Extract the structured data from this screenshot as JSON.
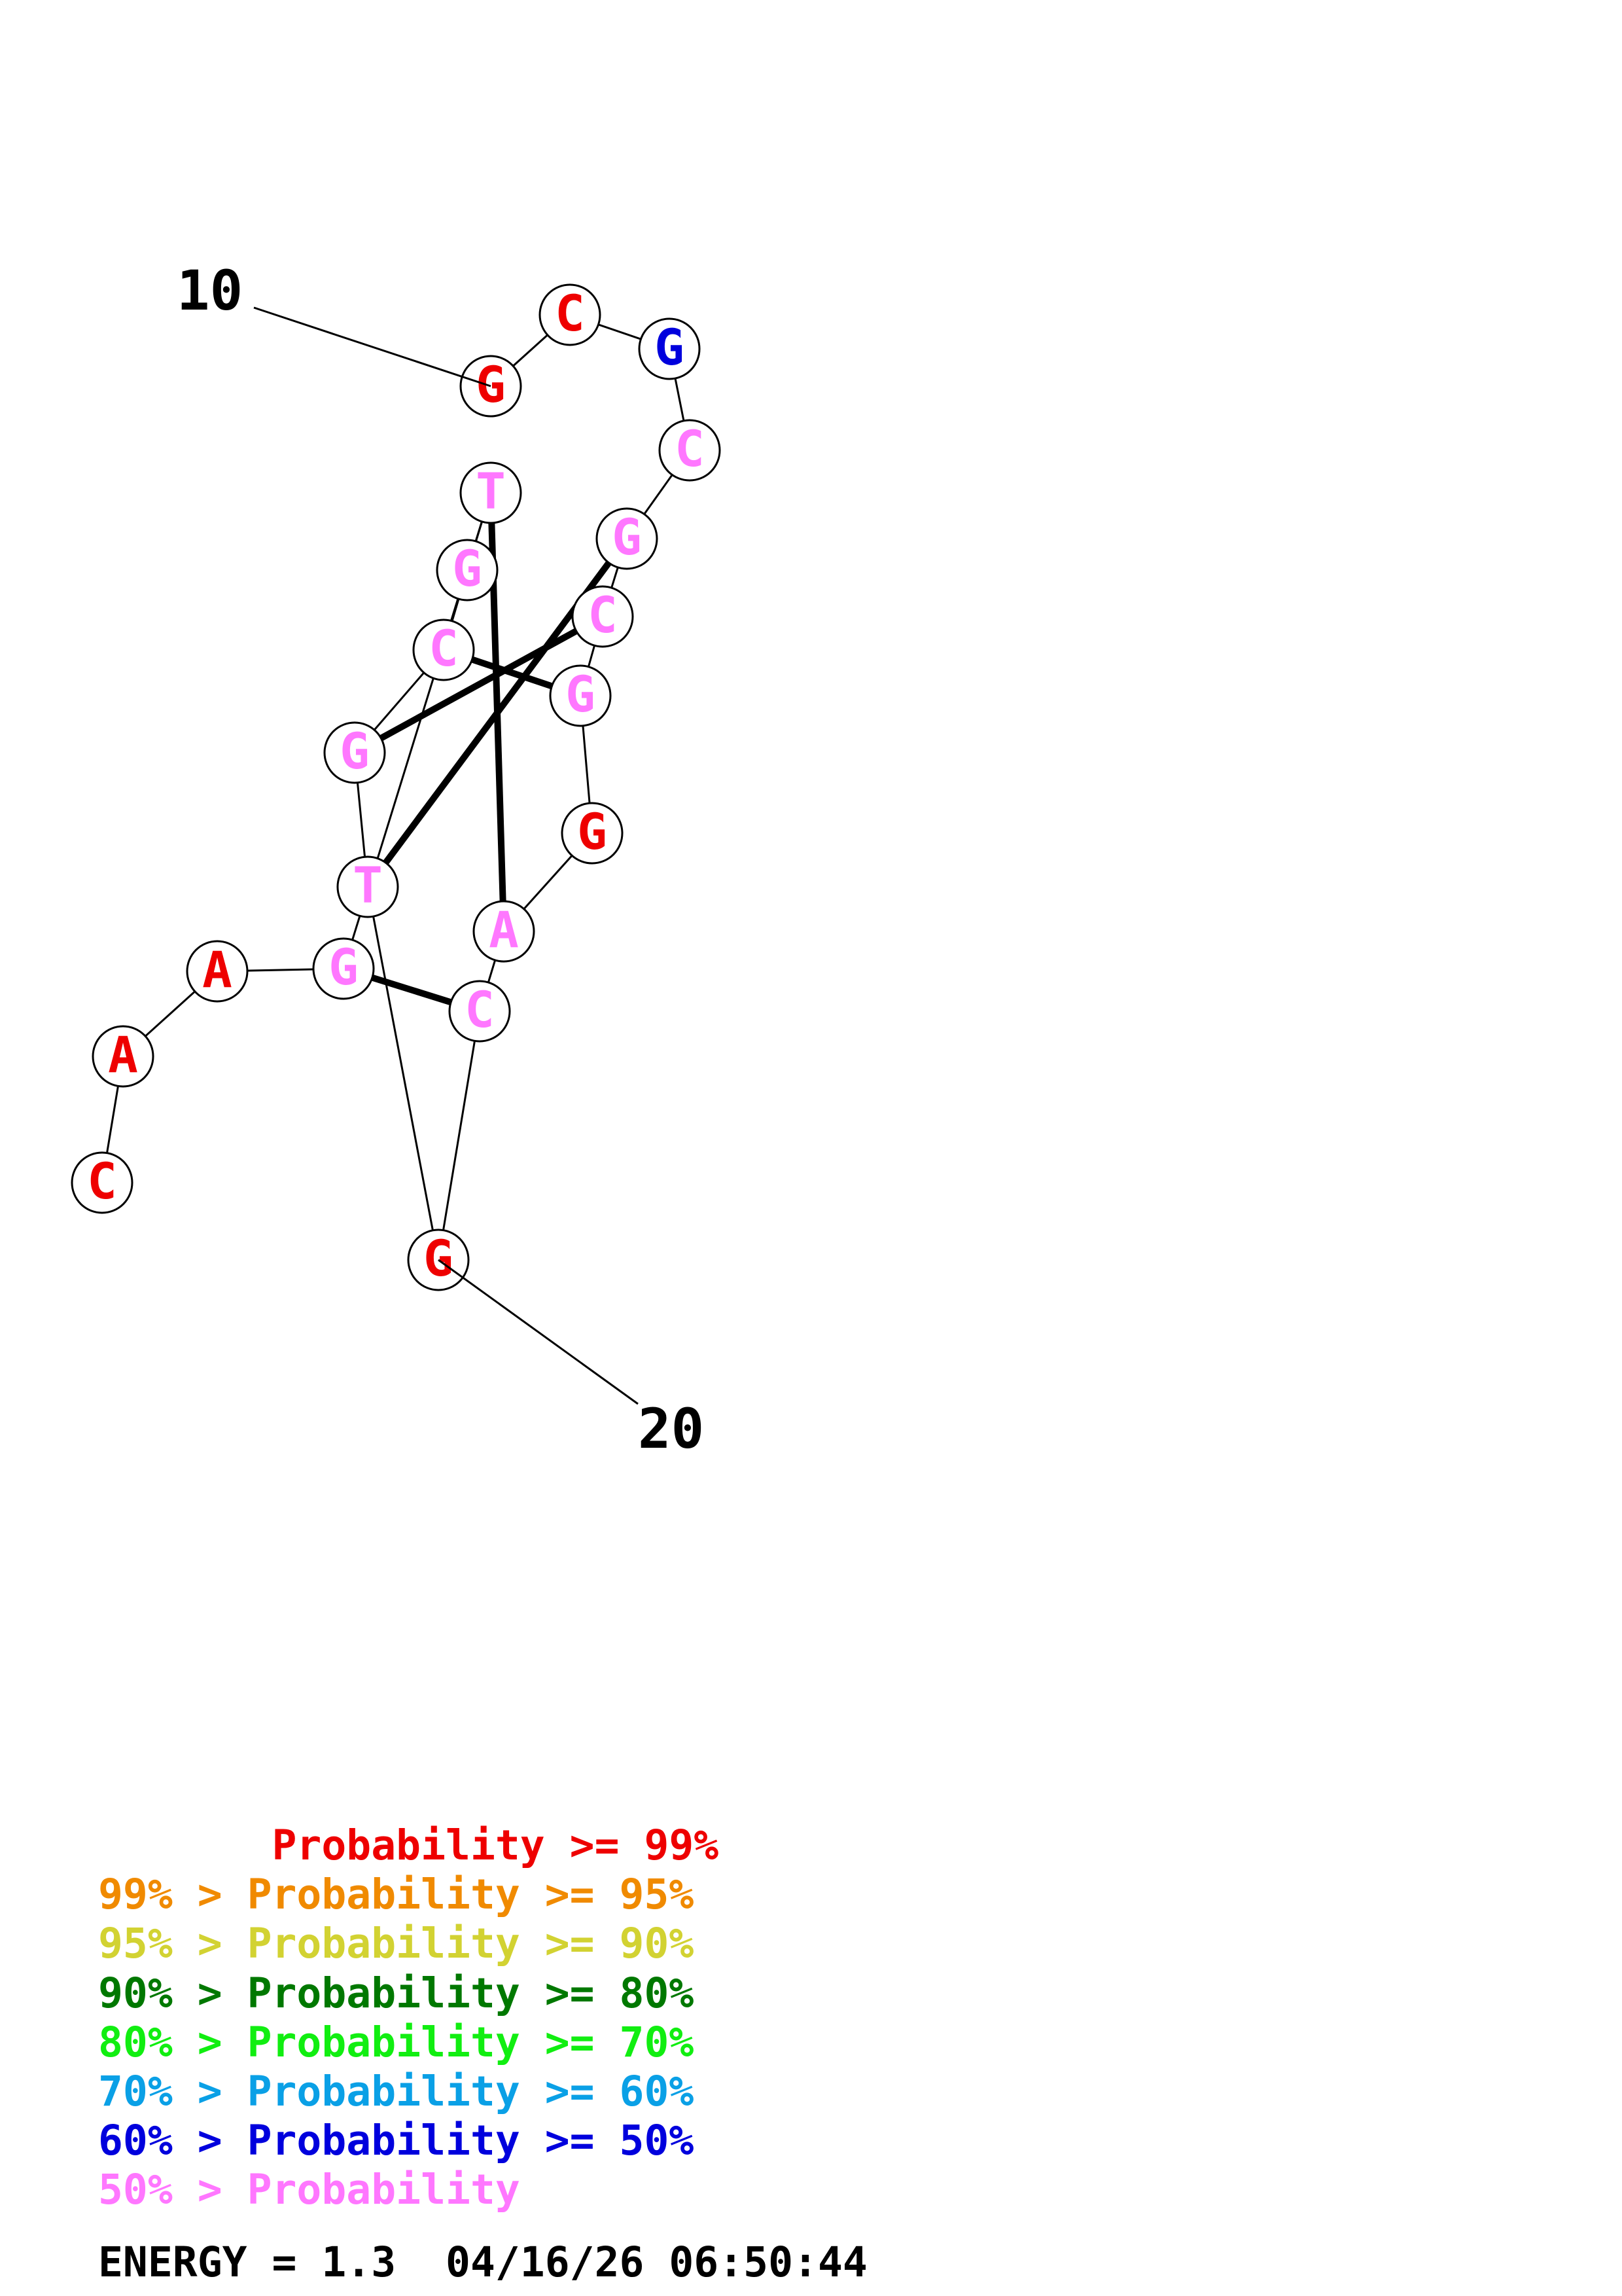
{
  "structure": {
    "markers": [
      {
        "label": "10",
        "base_index": 0
      },
      {
        "label": "20",
        "base_index": 10
      }
    ],
    "bases": [
      {
        "letter": "G",
        "color": "#ee0000"
      },
      {
        "letter": "C",
        "color": "#ee0000"
      },
      {
        "letter": "G",
        "color": "#0000dd"
      },
      {
        "letter": "C",
        "color": "#ff77ff"
      },
      {
        "letter": "G",
        "color": "#ff77ff"
      },
      {
        "letter": "C",
        "color": "#ff77ff"
      },
      {
        "letter": "G",
        "color": "#ff77ff"
      },
      {
        "letter": "G",
        "color": "#ee0000"
      },
      {
        "letter": "A",
        "color": "#ff77ff"
      },
      {
        "letter": "C",
        "color": "#ff77ff"
      },
      {
        "letter": "G",
        "color": "#ee0000"
      },
      {
        "letter": "T",
        "color": "#ff77ff"
      },
      {
        "letter": "G",
        "color": "#ff77ff"
      },
      {
        "letter": "C",
        "color": "#ff77ff"
      },
      {
        "letter": "G",
        "color": "#ff77ff"
      },
      {
        "letter": "T",
        "color": "#ff77ff"
      },
      {
        "letter": "G",
        "color": "#ff77ff"
      },
      {
        "letter": "A",
        "color": "#ee0000"
      },
      {
        "letter": "A",
        "color": "#ee0000"
      },
      {
        "letter": "C",
        "color": "#ee0000"
      }
    ],
    "pairs": [
      [
        11,
        4
      ],
      [
        12,
        5
      ],
      [
        13,
        6
      ],
      [
        15,
        8
      ],
      [
        16,
        9
      ]
    ]
  },
  "legend": [
    {
      "text": "       Probability >= 99%",
      "color": "#ee0000"
    },
    {
      "text": "99% > Probability >= 95%",
      "color": "#f08a00"
    },
    {
      "text": "95% > Probability >= 90%",
      "color": "#d2d232"
    },
    {
      "text": "90% > Probability >= 80%",
      "color": "#007800"
    },
    {
      "text": "80% > Probability >= 70%",
      "color": "#11ee11"
    },
    {
      "text": "70% > Probability >= 60%",
      "color": "#0aa0e6"
    },
    {
      "text": "60% > Probability >= 50%",
      "color": "#0000dd"
    },
    {
      "text": "50% > Probability",
      "color": "#ff77ff"
    }
  ],
  "energy_text": "ENERGY = 1.3  04/16/26 06:50:44"
}
